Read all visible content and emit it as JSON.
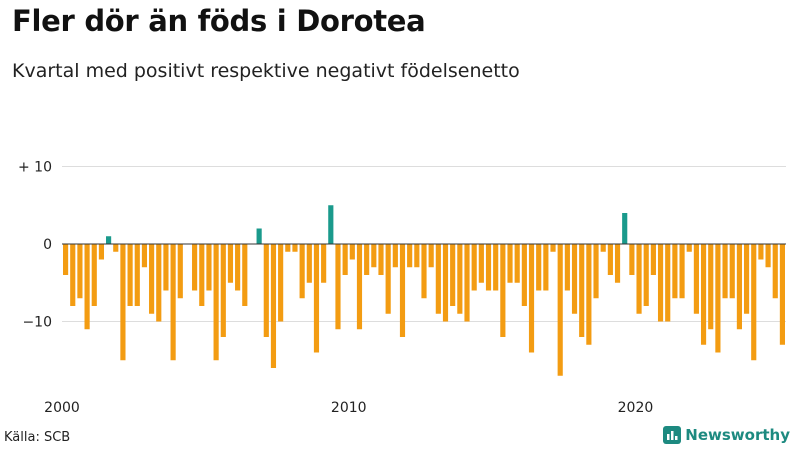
{
  "chart_data": {
    "type": "bar",
    "title": "Fler dör än föds i Dorotea",
    "subtitle": "Kvartal med positivt respektive negativt födelsenetto",
    "ylim": [
      -17,
      10
    ],
    "y_ticks": [
      {
        "value": 10,
        "label": "+ 10"
      },
      {
        "value": 0,
        "label": "0"
      },
      {
        "value": -10,
        "label": "−10"
      }
    ],
    "x_ticks": [
      {
        "year": 2000,
        "label": "2000"
      },
      {
        "year": 2010,
        "label": "2010"
      },
      {
        "year": 2020,
        "label": "2020"
      }
    ],
    "start_year": 2000,
    "positive_color": "#1a9a8c",
    "negative_color": "#f39c12",
    "values": [
      -4,
      -8,
      -7,
      -11,
      -8,
      -2,
      1,
      -1,
      -15,
      -8,
      -8,
      -3,
      -9,
      -10,
      -6,
      -15,
      -7,
      0,
      -6,
      -8,
      -6,
      -15,
      -12,
      -5,
      -6,
      -8,
      0,
      2,
      -12,
      -16,
      -10,
      -1,
      -1,
      -7,
      -5,
      -14,
      -5,
      5,
      -11,
      -4,
      -2,
      -11,
      -4,
      -3,
      -4,
      -9,
      -3,
      -12,
      -3,
      -3,
      -7,
      -3,
      -9,
      -10,
      -8,
      -9,
      -10,
      -6,
      -5,
      -6,
      -6,
      -12,
      -5,
      -5,
      -8,
      -14,
      -6,
      -6,
      -1,
      -17,
      -6,
      -9,
      -12,
      -13,
      -7,
      -1,
      -4,
      -5,
      4,
      -4,
      -9,
      -8,
      -4,
      -10,
      -10,
      -7,
      -7,
      -1,
      -9,
      -13,
      -11,
      -14,
      -7,
      -7,
      -11,
      -9,
      -15,
      -2,
      -3,
      -7,
      -13
    ]
  },
  "source": "Källa: SCB",
  "brand": {
    "name": "Newsworthy",
    "color": "#1d8a80"
  }
}
